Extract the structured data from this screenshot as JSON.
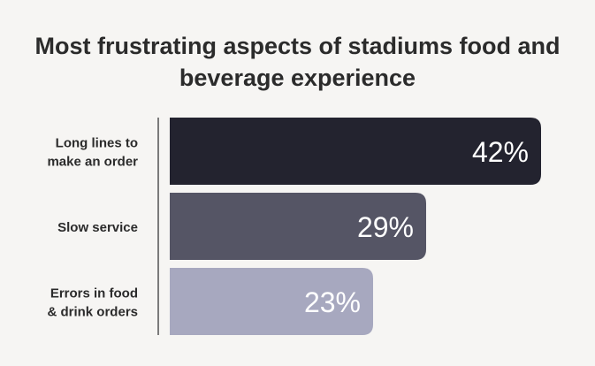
{
  "chart_data": {
    "type": "bar",
    "orientation": "horizontal",
    "title": "Most frustrating aspects of stadiums food and beverage experience",
    "title_lines": [
      "Most frustrating aspects of stadiums food and",
      "beverage experience"
    ],
    "categories": [
      "Long lines to make an order",
      "Slow service",
      "Errors in food & drink orders"
    ],
    "category_lines": [
      [
        "Long lines to",
        "make an order"
      ],
      [
        "Slow service"
      ],
      [
        "Errors in food",
        "& drink orders"
      ]
    ],
    "values": [
      42,
      29,
      23
    ],
    "data_labels": [
      "42%",
      "29%",
      "23%"
    ],
    "xlim": [
      0,
      42
    ],
    "unit": "%",
    "grid": false,
    "legend": "none",
    "colors": [
      "#23232f",
      "#555565",
      "#a7a8bf"
    ]
  }
}
